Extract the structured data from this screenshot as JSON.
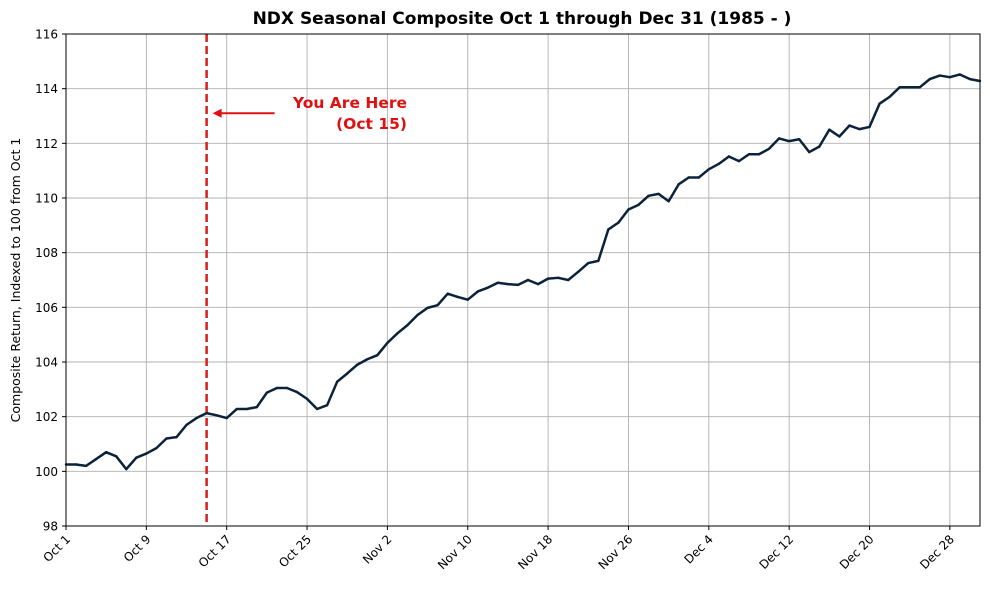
{
  "chart_data": {
    "type": "line",
    "title": "NDX Seasonal Composite Oct 1 through Dec 31 (1985 - )",
    "xlabel": "",
    "ylabel": "Composite Return, Indexed to 100 from Oct 1",
    "ylim": [
      98,
      116
    ],
    "xlim_days": [
      0,
      91
    ],
    "grid": true,
    "y_ticks": [
      "98",
      "100",
      "102",
      "104",
      "106",
      "108",
      "110",
      "112",
      "114",
      "116"
    ],
    "x_ticks": [
      {
        "day": 0,
        "label": "Oct 1"
      },
      {
        "day": 8,
        "label": "Oct 9"
      },
      {
        "day": 16,
        "label": "Oct 17"
      },
      {
        "day": 24,
        "label": "Oct 25"
      },
      {
        "day": 32,
        "label": "Nov 2"
      },
      {
        "day": 40,
        "label": "Nov 10"
      },
      {
        "day": 48,
        "label": "Nov 18"
      },
      {
        "day": 56,
        "label": "Nov 26"
      },
      {
        "day": 64,
        "label": "Dec 4"
      },
      {
        "day": 72,
        "label": "Dec 12"
      },
      {
        "day": 80,
        "label": "Dec 20"
      },
      {
        "day": 88,
        "label": "Dec 28"
      }
    ],
    "series": [
      {
        "color": "#0b2239",
        "x": [
          0,
          1,
          2,
          3,
          4,
          5,
          6,
          7,
          8,
          9,
          10,
          11,
          12,
          13,
          14,
          15,
          16,
          17,
          18,
          19,
          20,
          21,
          22,
          23,
          24,
          25,
          26,
          27,
          28,
          29,
          30,
          31,
          32,
          33,
          34,
          35,
          36,
          37,
          38,
          39,
          40,
          41,
          42,
          43,
          44,
          45,
          46,
          47,
          48,
          49,
          50,
          51,
          52,
          53,
          54,
          55,
          56,
          57,
          58,
          59,
          60,
          61,
          62,
          63,
          64,
          65,
          66,
          67,
          68,
          69,
          70,
          71,
          72,
          73,
          74,
          75,
          76,
          77,
          78,
          79,
          80,
          81,
          82,
          83,
          84,
          85,
          86,
          87,
          88,
          89,
          90,
          91
        ],
        "values": [
          100.25,
          100.25,
          100.2,
          100.45,
          100.7,
          100.55,
          100.08,
          100.5,
          100.65,
          100.85,
          101.2,
          101.25,
          101.7,
          101.95,
          102.13,
          102.05,
          101.95,
          102.28,
          102.28,
          102.35,
          102.88,
          103.05,
          103.05,
          102.9,
          102.65,
          102.28,
          102.42,
          103.28,
          103.58,
          103.9,
          104.1,
          104.25,
          104.7,
          105.05,
          105.35,
          105.72,
          105.98,
          106.08,
          106.5,
          106.38,
          106.28,
          106.58,
          106.72,
          106.9,
          106.85,
          106.82,
          107.0,
          106.85,
          107.05,
          107.08,
          107.0,
          107.3,
          107.62,
          107.7,
          108.85,
          109.1,
          109.58,
          109.75,
          110.08,
          110.15,
          109.88,
          110.5,
          110.75,
          110.75,
          111.05,
          111.25,
          111.52,
          111.35,
          111.6,
          111.6,
          111.8,
          112.18,
          112.08,
          112.15,
          111.68,
          111.88,
          112.5,
          112.25,
          112.65,
          112.52,
          112.6,
          113.45,
          113.7,
          114.05,
          114.05,
          114.05,
          114.35,
          114.48,
          114.42,
          114.52,
          114.35,
          114.28
        ]
      }
    ],
    "marker": {
      "day": 14,
      "color": "#d62020",
      "style": "dashed"
    },
    "annotation": {
      "line1": "You Are Here",
      "line2": "(Oct 15)",
      "color": "#e01010",
      "arrow_y": 113.1
    }
  }
}
